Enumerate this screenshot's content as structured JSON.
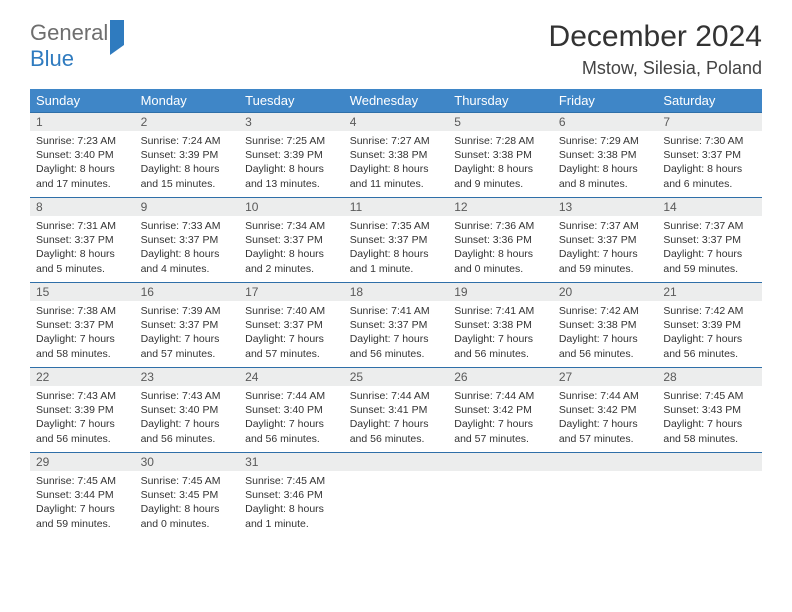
{
  "logo": {
    "part1": "General",
    "part2": "Blue"
  },
  "title": "December 2024",
  "location": "Mstow, Silesia, Poland",
  "day_headers": [
    "Sunday",
    "Monday",
    "Tuesday",
    "Wednesday",
    "Thursday",
    "Friday",
    "Saturday"
  ],
  "colors": {
    "header_bg": "#3f86c7",
    "header_text": "#ffffff",
    "daynum_bg": "#eceded",
    "cell_border": "#2f6fa8",
    "logo_gray": "#6e6e6e",
    "logo_blue": "#2f7bbf",
    "text": "#333333"
  },
  "weeks": [
    [
      {
        "n": "1",
        "sr": "Sunrise: 7:23 AM",
        "ss": "Sunset: 3:40 PM",
        "dl": "Daylight: 8 hours and 17 minutes."
      },
      {
        "n": "2",
        "sr": "Sunrise: 7:24 AM",
        "ss": "Sunset: 3:39 PM",
        "dl": "Daylight: 8 hours and 15 minutes."
      },
      {
        "n": "3",
        "sr": "Sunrise: 7:25 AM",
        "ss": "Sunset: 3:39 PM",
        "dl": "Daylight: 8 hours and 13 minutes."
      },
      {
        "n": "4",
        "sr": "Sunrise: 7:27 AM",
        "ss": "Sunset: 3:38 PM",
        "dl": "Daylight: 8 hours and 11 minutes."
      },
      {
        "n": "5",
        "sr": "Sunrise: 7:28 AM",
        "ss": "Sunset: 3:38 PM",
        "dl": "Daylight: 8 hours and 9 minutes."
      },
      {
        "n": "6",
        "sr": "Sunrise: 7:29 AM",
        "ss": "Sunset: 3:38 PM",
        "dl": "Daylight: 8 hours and 8 minutes."
      },
      {
        "n": "7",
        "sr": "Sunrise: 7:30 AM",
        "ss": "Sunset: 3:37 PM",
        "dl": "Daylight: 8 hours and 6 minutes."
      }
    ],
    [
      {
        "n": "8",
        "sr": "Sunrise: 7:31 AM",
        "ss": "Sunset: 3:37 PM",
        "dl": "Daylight: 8 hours and 5 minutes."
      },
      {
        "n": "9",
        "sr": "Sunrise: 7:33 AM",
        "ss": "Sunset: 3:37 PM",
        "dl": "Daylight: 8 hours and 4 minutes."
      },
      {
        "n": "10",
        "sr": "Sunrise: 7:34 AM",
        "ss": "Sunset: 3:37 PM",
        "dl": "Daylight: 8 hours and 2 minutes."
      },
      {
        "n": "11",
        "sr": "Sunrise: 7:35 AM",
        "ss": "Sunset: 3:37 PM",
        "dl": "Daylight: 8 hours and 1 minute."
      },
      {
        "n": "12",
        "sr": "Sunrise: 7:36 AM",
        "ss": "Sunset: 3:36 PM",
        "dl": "Daylight: 8 hours and 0 minutes."
      },
      {
        "n": "13",
        "sr": "Sunrise: 7:37 AM",
        "ss": "Sunset: 3:37 PM",
        "dl": "Daylight: 7 hours and 59 minutes."
      },
      {
        "n": "14",
        "sr": "Sunrise: 7:37 AM",
        "ss": "Sunset: 3:37 PM",
        "dl": "Daylight: 7 hours and 59 minutes."
      }
    ],
    [
      {
        "n": "15",
        "sr": "Sunrise: 7:38 AM",
        "ss": "Sunset: 3:37 PM",
        "dl": "Daylight: 7 hours and 58 minutes."
      },
      {
        "n": "16",
        "sr": "Sunrise: 7:39 AM",
        "ss": "Sunset: 3:37 PM",
        "dl": "Daylight: 7 hours and 57 minutes."
      },
      {
        "n": "17",
        "sr": "Sunrise: 7:40 AM",
        "ss": "Sunset: 3:37 PM",
        "dl": "Daylight: 7 hours and 57 minutes."
      },
      {
        "n": "18",
        "sr": "Sunrise: 7:41 AM",
        "ss": "Sunset: 3:37 PM",
        "dl": "Daylight: 7 hours and 56 minutes."
      },
      {
        "n": "19",
        "sr": "Sunrise: 7:41 AM",
        "ss": "Sunset: 3:38 PM",
        "dl": "Daylight: 7 hours and 56 minutes."
      },
      {
        "n": "20",
        "sr": "Sunrise: 7:42 AM",
        "ss": "Sunset: 3:38 PM",
        "dl": "Daylight: 7 hours and 56 minutes."
      },
      {
        "n": "21",
        "sr": "Sunrise: 7:42 AM",
        "ss": "Sunset: 3:39 PM",
        "dl": "Daylight: 7 hours and 56 minutes."
      }
    ],
    [
      {
        "n": "22",
        "sr": "Sunrise: 7:43 AM",
        "ss": "Sunset: 3:39 PM",
        "dl": "Daylight: 7 hours and 56 minutes."
      },
      {
        "n": "23",
        "sr": "Sunrise: 7:43 AM",
        "ss": "Sunset: 3:40 PM",
        "dl": "Daylight: 7 hours and 56 minutes."
      },
      {
        "n": "24",
        "sr": "Sunrise: 7:44 AM",
        "ss": "Sunset: 3:40 PM",
        "dl": "Daylight: 7 hours and 56 minutes."
      },
      {
        "n": "25",
        "sr": "Sunrise: 7:44 AM",
        "ss": "Sunset: 3:41 PM",
        "dl": "Daylight: 7 hours and 56 minutes."
      },
      {
        "n": "26",
        "sr": "Sunrise: 7:44 AM",
        "ss": "Sunset: 3:42 PM",
        "dl": "Daylight: 7 hours and 57 minutes."
      },
      {
        "n": "27",
        "sr": "Sunrise: 7:44 AM",
        "ss": "Sunset: 3:42 PM",
        "dl": "Daylight: 7 hours and 57 minutes."
      },
      {
        "n": "28",
        "sr": "Sunrise: 7:45 AM",
        "ss": "Sunset: 3:43 PM",
        "dl": "Daylight: 7 hours and 58 minutes."
      }
    ],
    [
      {
        "n": "29",
        "sr": "Sunrise: 7:45 AM",
        "ss": "Sunset: 3:44 PM",
        "dl": "Daylight: 7 hours and 59 minutes."
      },
      {
        "n": "30",
        "sr": "Sunrise: 7:45 AM",
        "ss": "Sunset: 3:45 PM",
        "dl": "Daylight: 8 hours and 0 minutes."
      },
      {
        "n": "31",
        "sr": "Sunrise: 7:45 AM",
        "ss": "Sunset: 3:46 PM",
        "dl": "Daylight: 8 hours and 1 minute."
      },
      null,
      null,
      null,
      null
    ]
  ]
}
